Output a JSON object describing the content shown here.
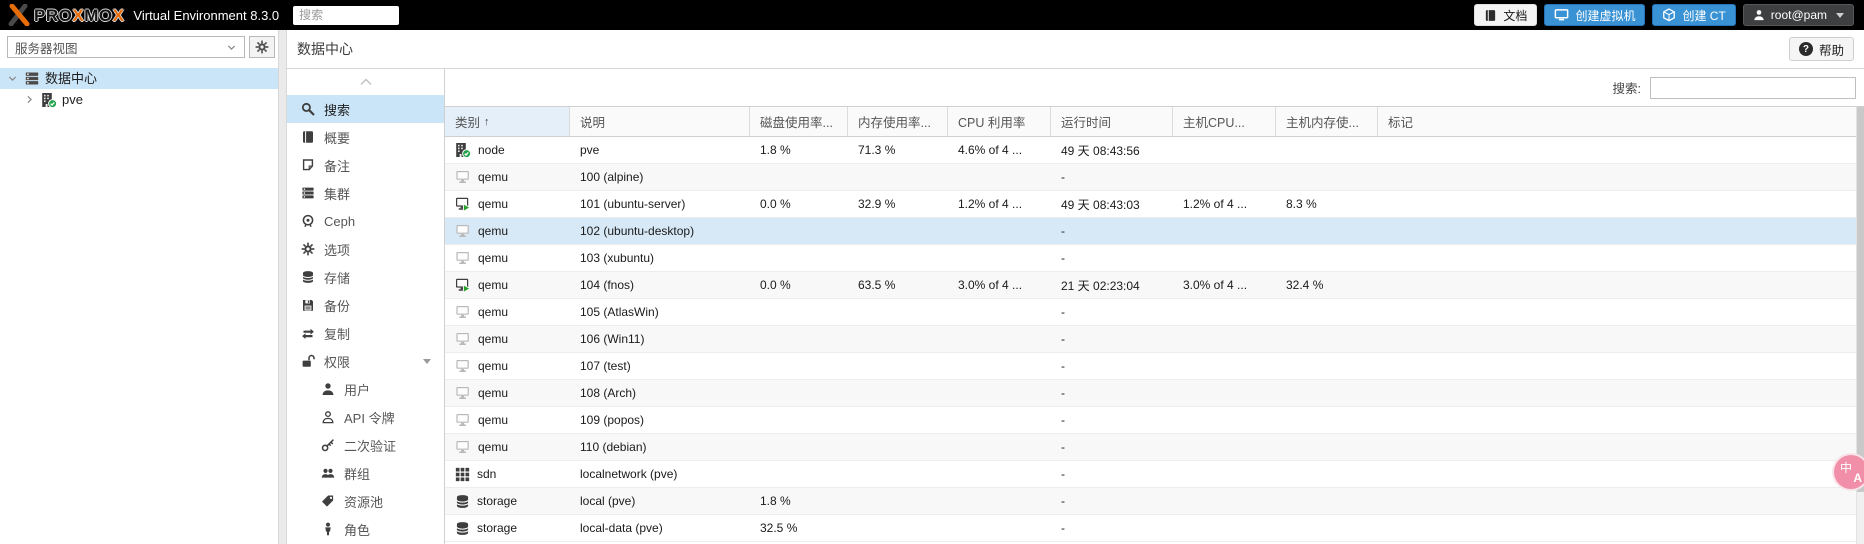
{
  "colors": {
    "topbar_bg": "#000000",
    "logo_orange": "#e66b09",
    "primary_button_blue": "#3892d4",
    "selection_blue": "#cbe5f8",
    "selected_row_blue": "#d7e9f7",
    "running_green": "#2ca02c",
    "online_badge_green": "#23a24c",
    "translate_badge_pink": "#f08fa7"
  },
  "topbar": {
    "logo_word_parts": [
      "PRO",
      "X",
      "MO",
      "X"
    ],
    "version_text": "Virtual Environment 8.3.0",
    "search_placeholder": "搜索",
    "docs_label": "文档",
    "create_vm_label": "创建虚拟机",
    "create_ct_label": "创建 CT",
    "user_label": "root@pam"
  },
  "sidebar": {
    "view_selector_value": "服务器视图",
    "tree_items": [
      {
        "label": "数据中心",
        "icon": "datacenter-icon",
        "expander": "down",
        "level": 0,
        "selected": true
      },
      {
        "label": "pve",
        "icon": "node-online-icon",
        "expander": "right",
        "level": 1,
        "selected": false
      }
    ]
  },
  "content": {
    "title": "数据中心",
    "help_label": "帮助",
    "help_glyph": "?",
    "menu_items": [
      {
        "label": "搜索",
        "icon": "search-icon",
        "selected": true
      },
      {
        "label": "概要",
        "icon": "book-icon"
      },
      {
        "label": "备注",
        "icon": "note-icon"
      },
      {
        "label": "集群",
        "icon": "cluster-icon"
      },
      {
        "label": "Ceph",
        "icon": "ceph-icon"
      },
      {
        "label": "选项",
        "icon": "gear-icon"
      },
      {
        "label": "存储",
        "icon": "storage-icon"
      },
      {
        "label": "备份",
        "icon": "backup-icon"
      },
      {
        "label": "复制",
        "icon": "replication-icon"
      },
      {
        "label": "权限",
        "icon": "unlock-icon",
        "caret": true
      },
      {
        "label": "用户",
        "icon": "user-icon",
        "indent": true
      },
      {
        "label": "API 令牌",
        "icon": "user-outline-icon",
        "indent": true
      },
      {
        "label": "二次验证",
        "icon": "key-icon",
        "indent": true
      },
      {
        "label": "群组",
        "icon": "users-icon",
        "indent": true
      },
      {
        "label": "资源池",
        "icon": "tag-icon",
        "indent": true
      },
      {
        "label": "角色",
        "icon": "person-icon",
        "indent": true
      }
    ],
    "grid": {
      "search_label": "搜索:",
      "search_value": "",
      "sort_asc_glyph": "↑",
      "columns": [
        {
          "key": "type",
          "label": "类别",
          "sorted": true
        },
        {
          "key": "desc",
          "label": "说明"
        },
        {
          "key": "disk",
          "label": "磁盘使用率..."
        },
        {
          "key": "mem",
          "label": "内存使用率..."
        },
        {
          "key": "cpu",
          "label": "CPU 利用率"
        },
        {
          "key": "uptime",
          "label": "运行时间"
        },
        {
          "key": "hostcpu",
          "label": "主机CPU..."
        },
        {
          "key": "hostmem",
          "label": "主机内存使..."
        },
        {
          "key": "tags",
          "label": "标记"
        }
      ],
      "rows": [
        {
          "icon": "node-online-icon",
          "type": "node",
          "desc": "pve",
          "disk": "1.8 %",
          "mem": "71.3 %",
          "cpu": "4.6% of 4 ...",
          "uptime": "49 天 08:43:56",
          "hostcpu": "",
          "hostmem": "",
          "tags": ""
        },
        {
          "icon": "qemu-stopped-icon",
          "type": "qemu",
          "desc": "100 (alpine)",
          "disk": "",
          "mem": "",
          "cpu": "",
          "uptime": "-",
          "hostcpu": "",
          "hostmem": "",
          "tags": ""
        },
        {
          "icon": "qemu-running-icon",
          "type": "qemu",
          "desc": "101 (ubuntu-server)",
          "disk": "0.0 %",
          "mem": "32.9 %",
          "cpu": "1.2% of 4 ...",
          "uptime": "49 天 08:43:03",
          "hostcpu": "1.2% of 4 ...",
          "hostmem": "8.3 %",
          "tags": ""
        },
        {
          "icon": "qemu-stopped-icon",
          "type": "qemu",
          "desc": "102 (ubuntu-desktop)",
          "disk": "",
          "mem": "",
          "cpu": "",
          "uptime": "-",
          "hostcpu": "",
          "hostmem": "",
          "tags": "",
          "selected": true
        },
        {
          "icon": "qemu-stopped-icon",
          "type": "qemu",
          "desc": "103 (xubuntu)",
          "disk": "",
          "mem": "",
          "cpu": "",
          "uptime": "-",
          "hostcpu": "",
          "hostmem": "",
          "tags": ""
        },
        {
          "icon": "qemu-running-icon",
          "type": "qemu",
          "desc": "104 (fnos)",
          "disk": "0.0 %",
          "mem": "63.5 %",
          "cpu": "3.0% of 4 ...",
          "uptime": "21 天 02:23:04",
          "hostcpu": "3.0% of 4 ...",
          "hostmem": "32.4 %",
          "tags": ""
        },
        {
          "icon": "qemu-stopped-icon",
          "type": "qemu",
          "desc": "105 (AtlasWin)",
          "disk": "",
          "mem": "",
          "cpu": "",
          "uptime": "-",
          "hostcpu": "",
          "hostmem": "",
          "tags": ""
        },
        {
          "icon": "qemu-stopped-icon",
          "type": "qemu",
          "desc": "106 (Win11)",
          "disk": "",
          "mem": "",
          "cpu": "",
          "uptime": "-",
          "hostcpu": "",
          "hostmem": "",
          "tags": ""
        },
        {
          "icon": "qemu-stopped-icon",
          "type": "qemu",
          "desc": "107 (test)",
          "disk": "",
          "mem": "",
          "cpu": "",
          "uptime": "-",
          "hostcpu": "",
          "hostmem": "",
          "tags": ""
        },
        {
          "icon": "qemu-stopped-icon",
          "type": "qemu",
          "desc": "108 (Arch)",
          "disk": "",
          "mem": "",
          "cpu": "",
          "uptime": "-",
          "hostcpu": "",
          "hostmem": "",
          "tags": ""
        },
        {
          "icon": "qemu-stopped-icon",
          "type": "qemu",
          "desc": "109 (popos)",
          "disk": "",
          "mem": "",
          "cpu": "",
          "uptime": "-",
          "hostcpu": "",
          "hostmem": "",
          "tags": ""
        },
        {
          "icon": "qemu-stopped-icon",
          "type": "qemu",
          "desc": "110 (debian)",
          "disk": "",
          "mem": "",
          "cpu": "",
          "uptime": "-",
          "hostcpu": "",
          "hostmem": "",
          "tags": ""
        },
        {
          "icon": "sdn-icon",
          "type": "sdn",
          "desc": "localnetwork (pve)",
          "disk": "",
          "mem": "",
          "cpu": "",
          "uptime": "-",
          "hostcpu": "",
          "hostmem": "",
          "tags": ""
        },
        {
          "icon": "storage-row-icon",
          "type": "storage",
          "desc": "local (pve)",
          "disk": "1.8 %",
          "mem": "",
          "cpu": "",
          "uptime": "-",
          "hostcpu": "",
          "hostmem": "",
          "tags": ""
        },
        {
          "icon": "storage-row-icon",
          "type": "storage",
          "desc": "local-data (pve)",
          "disk": "32.5 %",
          "mem": "",
          "cpu": "",
          "uptime": "-",
          "hostcpu": "",
          "hostmem": "",
          "tags": ""
        }
      ]
    }
  },
  "floating": {
    "translate_badge_glyphs": [
      "中",
      "A"
    ]
  }
}
